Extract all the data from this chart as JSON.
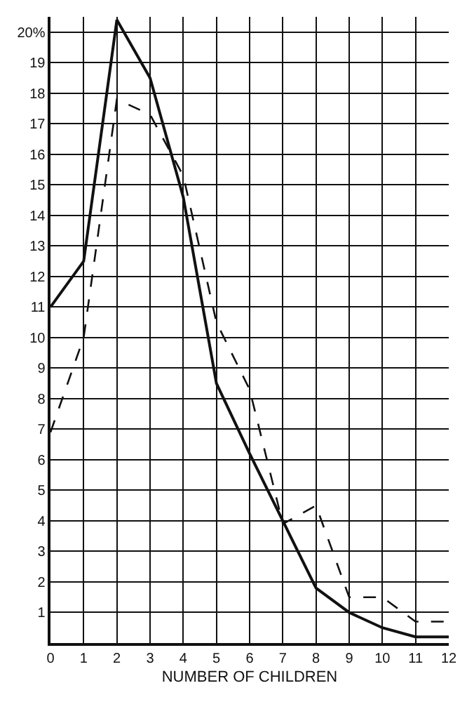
{
  "chart_data": {
    "type": "line",
    "xlabel": "NUMBER OF CHILDREN",
    "x": [
      0,
      1,
      2,
      3,
      4,
      5,
      6,
      7,
      8,
      9,
      10,
      11,
      12
    ],
    "series": [
      {
        "color": "#111111",
        "line_style": "solid",
        "values": [
          11,
          12.5,
          20.4,
          18.5,
          14.6,
          8.5,
          6.2,
          4.0,
          1.8,
          1.0,
          0.5,
          0.2,
          0.2
        ]
      },
      {
        "color": "#111111",
        "line_style": "dashed",
        "values": [
          6.9,
          10,
          17.8,
          17.3,
          15.3,
          10.5,
          8.3,
          3.9,
          4.5,
          1.5,
          1.5,
          0.7,
          0.7
        ]
      }
    ],
    "xlim": [
      0,
      12
    ],
    "ylim": [
      0,
      20.5
    ],
    "xticks": [
      0,
      1,
      2,
      3,
      4,
      5,
      6,
      7,
      8,
      9,
      10,
      11,
      12
    ],
    "yticks": [
      1,
      2,
      3,
      4,
      5,
      6,
      7,
      8,
      9,
      10,
      11,
      12,
      13,
      14,
      15,
      16,
      17,
      18,
      19,
      {
        "value": 20,
        "label": "20%"
      }
    ],
    "grid": true,
    "marker": "none"
  }
}
